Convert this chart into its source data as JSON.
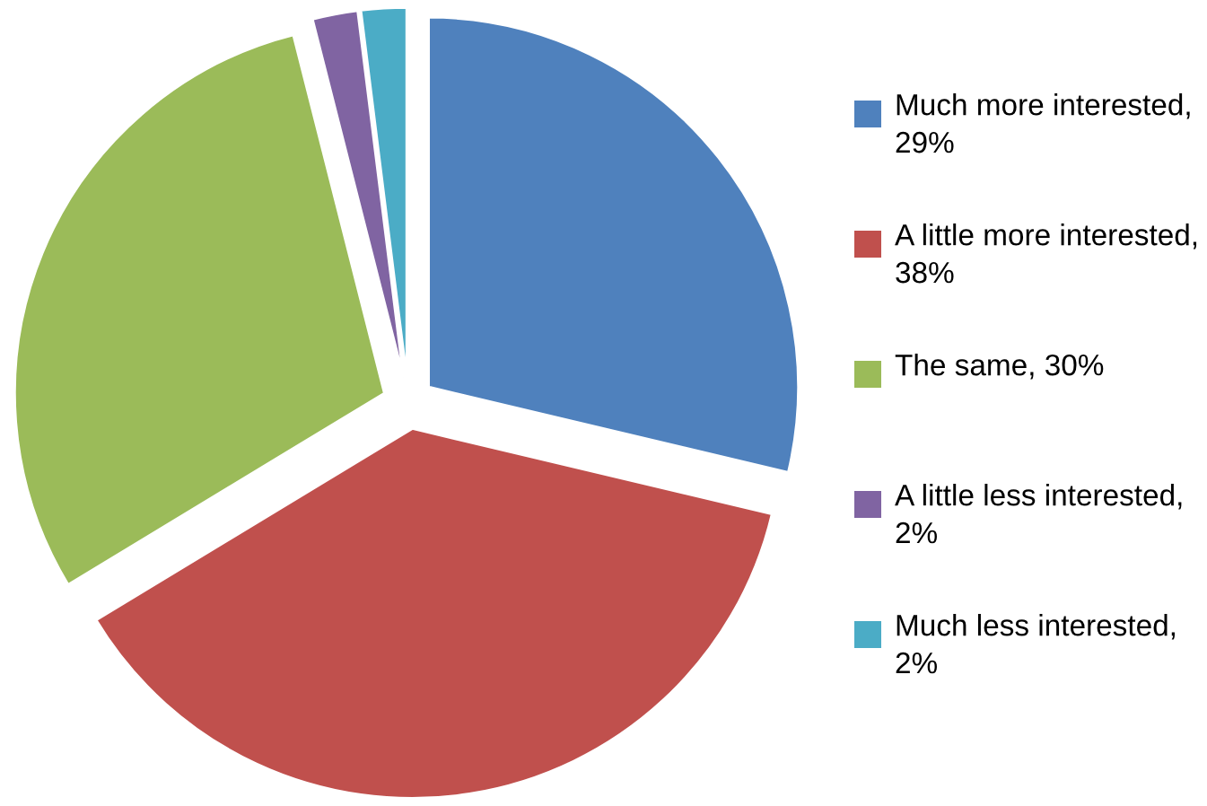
{
  "chart_data": {
    "type": "pie",
    "categories": [
      "Much more interested, 29%",
      "A little more interested, 38%",
      "The same, 30%",
      "A little less interested, 2%",
      "Much less interested, 2%"
    ],
    "values": [
      29,
      38,
      30,
      2,
      2
    ],
    "colors": [
      "#4f81bd",
      "#c0504d",
      "#9bbb59",
      "#8064a2",
      "#4bacc6"
    ],
    "legend": "right"
  }
}
